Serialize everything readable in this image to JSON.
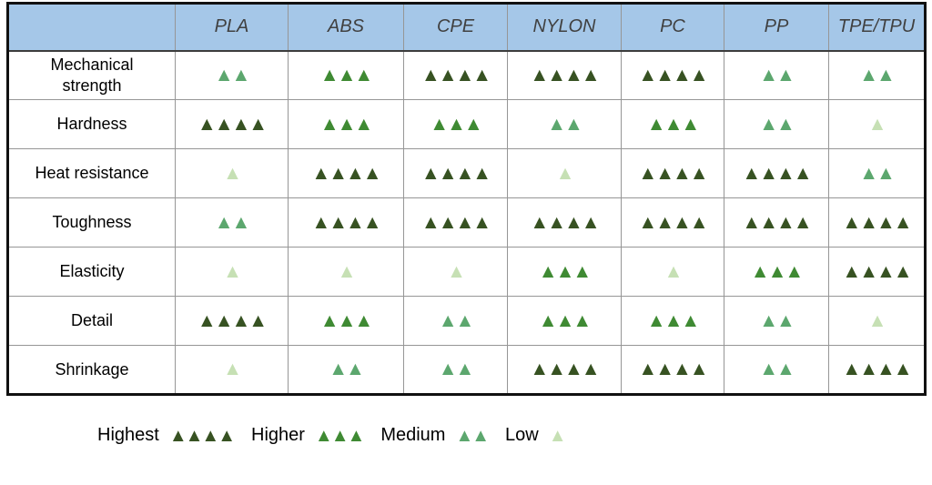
{
  "chart_data": {
    "type": "table",
    "title": "",
    "columns": [
      "PLA",
      "ABS",
      "CPE",
      "NYLON",
      "PC",
      "PP",
      "TPE/TPU"
    ],
    "rows": [
      {
        "label": "Mechanical\nstrength",
        "values": [
          2,
          3,
          4,
          4,
          4,
          2,
          2
        ]
      },
      {
        "label": "Hardness",
        "values": [
          4,
          3,
          3,
          2,
          3,
          2,
          1
        ]
      },
      {
        "label": "Heat resistance",
        "values": [
          1,
          4,
          4,
          1,
          4,
          4,
          2
        ]
      },
      {
        "label": "Toughness",
        "values": [
          2,
          4,
          4,
          4,
          4,
          4,
          4
        ]
      },
      {
        "label": "Elasticity",
        "values": [
          1,
          1,
          1,
          3,
          1,
          3,
          4
        ]
      },
      {
        "label": "Detail",
        "values": [
          4,
          3,
          2,
          3,
          3,
          2,
          1
        ]
      },
      {
        "label": "Shrinkage",
        "values": [
          1,
          2,
          2,
          4,
          4,
          2,
          4
        ]
      }
    ],
    "value_scale": {
      "1": "Low",
      "2": "Medium",
      "3": "Higher",
      "4": "Highest"
    },
    "legend_position": "bottom"
  },
  "rating_scale": {
    "icon": "triangle-up-icon",
    "glyph": "▲",
    "tiers": [
      {
        "value": 4,
        "name": "Highest",
        "color": "#375222"
      },
      {
        "value": 3,
        "name": "Higher",
        "color": "#3f8a33"
      },
      {
        "value": 2,
        "name": "Medium",
        "color": "#5ca76e"
      },
      {
        "value": 1,
        "name": "Low",
        "color": "#c6e0b4"
      }
    ]
  },
  "legend": {
    "items": [
      {
        "label": "Highest",
        "count": 4
      },
      {
        "label": "Higher",
        "count": 3
      },
      {
        "label": "Medium",
        "count": 2
      },
      {
        "label": "Low",
        "count": 1
      }
    ]
  },
  "colors": {
    "header_bg": "#a5c7e8",
    "header_text": "#404040",
    "grid_line": "#969696",
    "outer_border": "#111111",
    "header_divider": "#3d3d3d",
    "cell_bg": "#ffffff",
    "page_bg": "#ffffff"
  }
}
